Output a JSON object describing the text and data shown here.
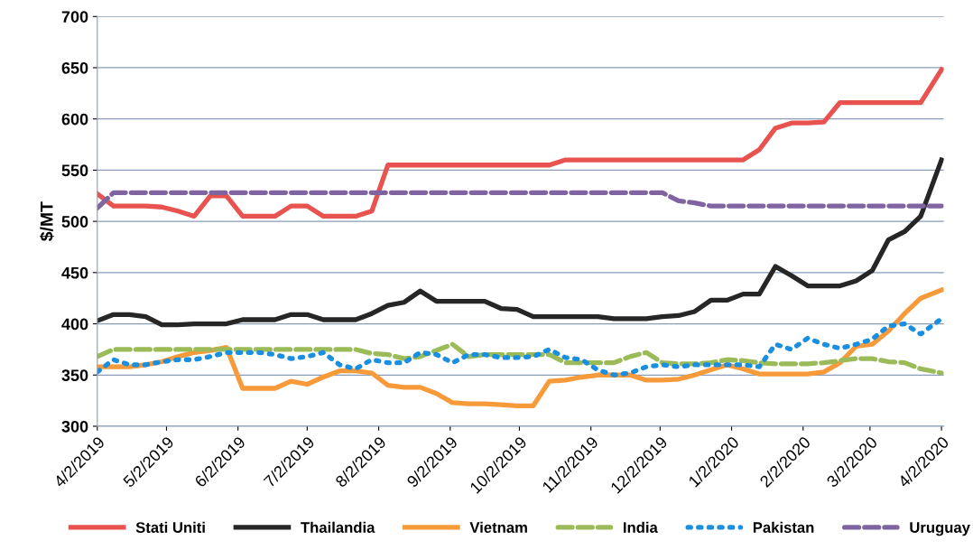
{
  "chart_data": {
    "type": "line",
    "ylabel": "$/MT",
    "x": [
      "2019-04-02",
      "2019-04-09",
      "2019-04-16",
      "2019-04-23",
      "2019-04-30",
      "2019-05-07",
      "2019-05-14",
      "2019-05-21",
      "2019-05-28",
      "2019-06-04",
      "2019-06-11",
      "2019-06-18",
      "2019-06-25",
      "2019-07-02",
      "2019-07-09",
      "2019-07-16",
      "2019-07-23",
      "2019-07-30",
      "2019-08-06",
      "2019-08-13",
      "2019-08-20",
      "2019-08-27",
      "2019-09-03",
      "2019-09-10",
      "2019-09-17",
      "2019-09-24",
      "2019-10-01",
      "2019-10-08",
      "2019-10-15",
      "2019-10-22",
      "2019-10-29",
      "2019-11-05",
      "2019-11-12",
      "2019-11-19",
      "2019-11-26",
      "2019-12-03",
      "2019-12-10",
      "2019-12-17",
      "2019-12-24",
      "2019-12-31",
      "2020-01-07",
      "2020-01-14",
      "2020-01-21",
      "2020-01-28",
      "2020-02-04",
      "2020-02-11",
      "2020-02-18",
      "2020-02-25",
      "2020-03-03",
      "2020-03-10",
      "2020-03-17",
      "2020-03-24",
      "2020-04-02"
    ],
    "series": [
      {
        "name": "Stati Uniti",
        "color": "#e8524f",
        "line_style": "solid",
        "values": [
          527,
          515,
          515,
          515,
          514,
          510,
          505,
          525,
          525,
          505,
          505,
          505,
          515,
          515,
          505,
          505,
          505,
          510,
          555,
          555,
          555,
          555,
          555,
          555,
          555,
          555,
          555,
          555,
          555,
          560,
          560,
          560,
          560,
          560,
          560,
          560,
          560,
          560,
          560,
          560,
          560,
          570,
          591,
          596,
          596,
          597,
          616,
          616,
          616,
          616,
          616,
          616,
          648
        ]
      },
      {
        "name": "Thailandia",
        "color": "#262626",
        "line_style": "solid",
        "values": [
          403,
          409,
          409,
          407,
          399,
          399,
          400,
          400,
          400,
          404,
          404,
          404,
          409,
          409,
          404,
          404,
          404,
          410,
          418,
          421,
          432,
          422,
          422,
          422,
          422,
          415,
          414,
          407,
          407,
          407,
          407,
          407,
          405,
          405,
          405,
          407,
          408,
          412,
          423,
          423,
          429,
          429,
          456,
          447,
          437,
          437,
          437,
          442,
          452,
          482,
          490,
          505,
          560
        ]
      },
      {
        "name": "Vietnam",
        "color": "#f79a3a",
        "line_style": "solid",
        "values": [
          358,
          358,
          358,
          360,
          363,
          368,
          372,
          374,
          377,
          337,
          337,
          337,
          344,
          341,
          348,
          354,
          354,
          352,
          340,
          338,
          338,
          332,
          323,
          322,
          322,
          321,
          320,
          320,
          344,
          345,
          348,
          350,
          350,
          350,
          345,
          345,
          346,
          350,
          355,
          360,
          356,
          351,
          351,
          351,
          351,
          353,
          362,
          378,
          380,
          393,
          410,
          425,
          433
        ]
      },
      {
        "name": "India",
        "color": "#9bbb59",
        "line_style": "dashed",
        "values": [
          368,
          375,
          375,
          375,
          375,
          375,
          375,
          375,
          375,
          375,
          375,
          375,
          375,
          375,
          375,
          375,
          375,
          371,
          370,
          366,
          368,
          374,
          380,
          368,
          370,
          370,
          370,
          370,
          370,
          362,
          362,
          362,
          362,
          368,
          372,
          362,
          361,
          361,
          362,
          365,
          364,
          362,
          361,
          361,
          361,
          362,
          364,
          366,
          366,
          363,
          362,
          356,
          352
        ]
      },
      {
        "name": "Pakistan",
        "color": "#1a8fe0",
        "line_style": "dotted",
        "values": [
          353,
          365,
          360,
          360,
          363,
          365,
          365,
          368,
          372,
          372,
          372,
          370,
          366,
          368,
          372,
          360,
          356,
          365,
          362,
          362,
          372,
          370,
          362,
          370,
          370,
          367,
          367,
          368,
          375,
          367,
          365,
          355,
          350,
          352,
          358,
          360,
          358,
          360,
          360,
          360,
          360,
          358,
          380,
          375,
          386,
          380,
          376,
          380,
          385,
          398,
          400,
          390,
          405
        ]
      },
      {
        "name": "Uruguay",
        "color": "#8064a2",
        "line_style": "dashed",
        "values": [
          513,
          528,
          528,
          528,
          528,
          528,
          528,
          528,
          528,
          528,
          528,
          528,
          528,
          528,
          528,
          528,
          528,
          528,
          528,
          528,
          528,
          528,
          528,
          528,
          528,
          528,
          528,
          528,
          528,
          528,
          528,
          528,
          528,
          528,
          528,
          528,
          520,
          518,
          515,
          515,
          515,
          515,
          515,
          515,
          515,
          515,
          515,
          515,
          515,
          515,
          515,
          515,
          515
        ]
      }
    ],
    "xlim": [
      "2019-04-02",
      "2020-04-03"
    ],
    "xticks": [
      {
        "value": "2019-04-02",
        "label": "4/2/2019"
      },
      {
        "value": "2019-05-02",
        "label": "5/2/2019"
      },
      {
        "value": "2019-06-02",
        "label": "6/2/2019"
      },
      {
        "value": "2019-07-02",
        "label": "7/2/2019"
      },
      {
        "value": "2019-08-02",
        "label": "8/2/2019"
      },
      {
        "value": "2019-09-02",
        "label": "9/2/2019"
      },
      {
        "value": "2019-10-02",
        "label": "10/2/2019"
      },
      {
        "value": "2019-11-02",
        "label": "11/2/2019"
      },
      {
        "value": "2019-12-02",
        "label": "12/2/2019"
      },
      {
        "value": "2020-01-02",
        "label": "1/2/2020"
      },
      {
        "value": "2020-02-02",
        "label": "2/2/2020"
      },
      {
        "value": "2020-03-02",
        "label": "3/2/2020"
      },
      {
        "value": "2020-04-02",
        "label": "4/2/2020"
      }
    ],
    "ylim": [
      300,
      700
    ],
    "yticks": [
      300,
      350,
      400,
      450,
      500,
      550,
      600,
      650,
      700
    ],
    "grid": "y",
    "legend": "bottom",
    "marker": "none"
  }
}
